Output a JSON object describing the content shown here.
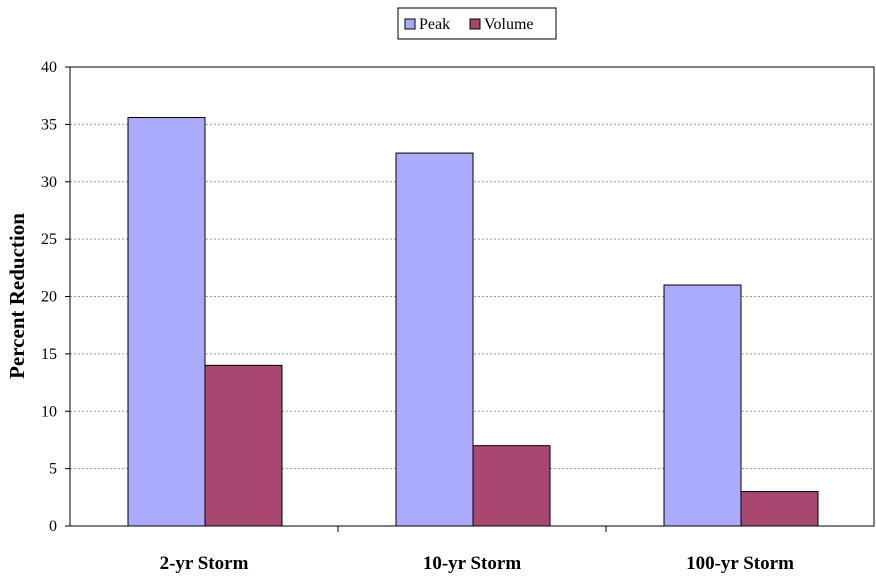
{
  "chart_data": {
    "type": "bar",
    "categories": [
      "2-yr Storm",
      "10-yr Storm",
      "100-yr Storm"
    ],
    "series": [
      {
        "name": "Peak",
        "values": [
          35.6,
          32.5,
          21.0
        ],
        "color": "#aaaaff"
      },
      {
        "name": "Volume",
        "values": [
          14.0,
          7.0,
          3.0
        ],
        "color": "#a8476f"
      }
    ],
    "ylabel": "Percent Reduction",
    "xlabel": "",
    "ylim": [
      0,
      40
    ],
    "yticks": [
      0,
      5,
      10,
      15,
      20,
      25,
      30,
      35,
      40
    ],
    "grid": true,
    "legend_position": "top-center"
  }
}
